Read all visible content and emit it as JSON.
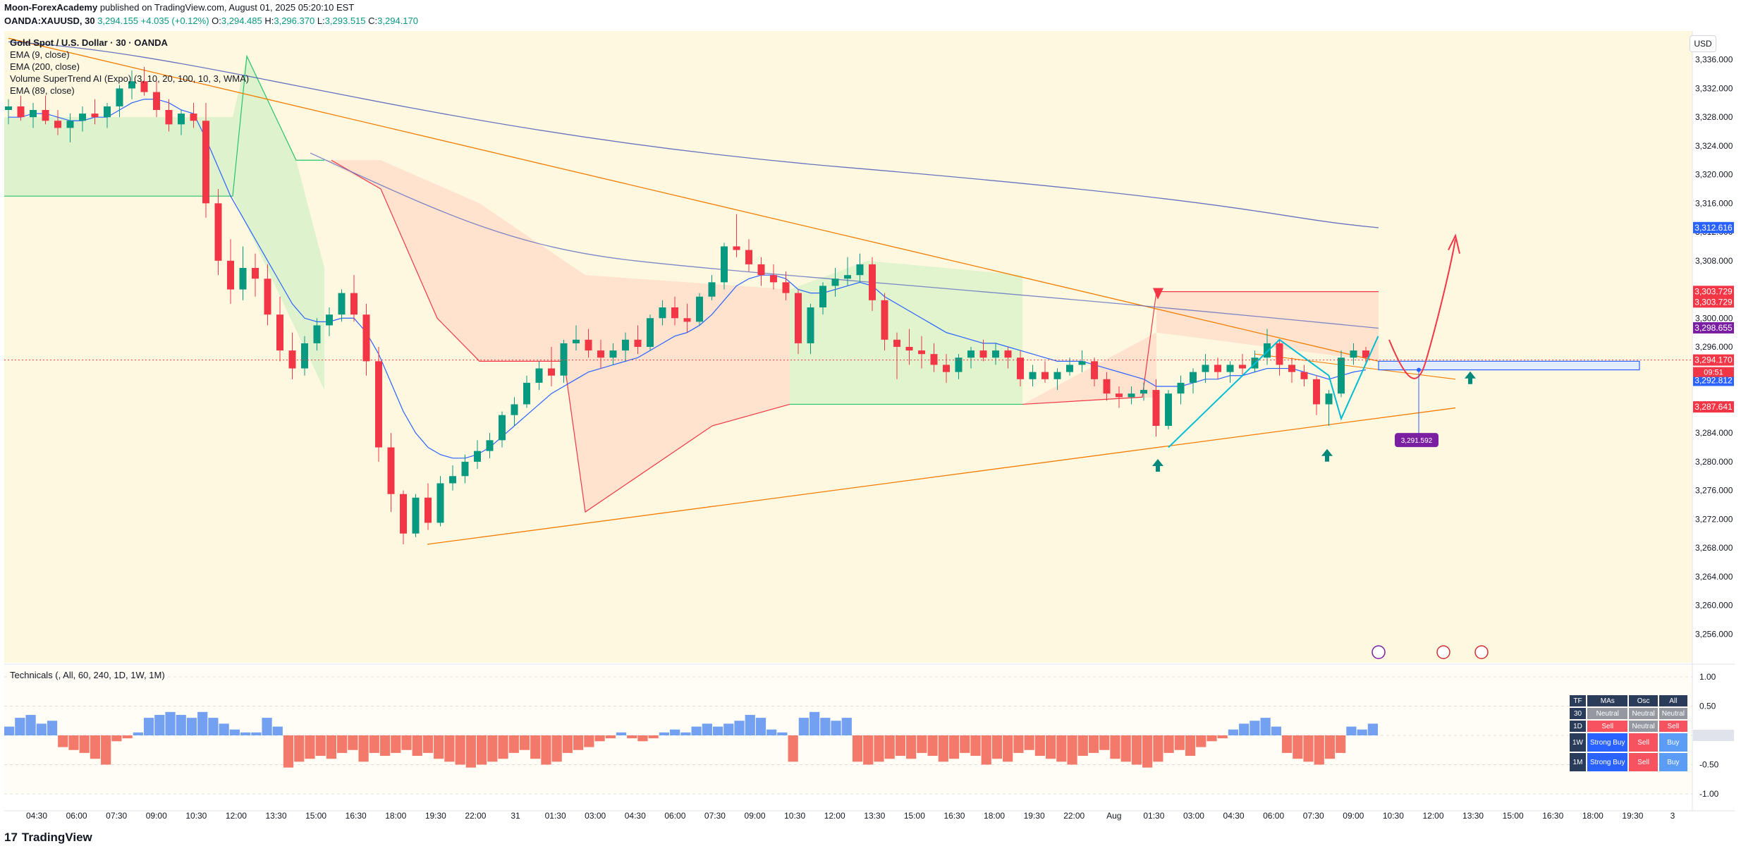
{
  "header": {
    "publisher": "Moon-ForexAcademy",
    "published_text": "published on TradingView.com, August 01, 2025 05:20:10 EST",
    "symbol": "OANDA:XAUUSD, 30",
    "last": "3,294.155",
    "change": "+4.035 (+0.12%)",
    "o_label": "O:",
    "o": "3,294.485",
    "h_label": "H:",
    "h": "3,296.370",
    "l_label": "L:",
    "l": "3,293.515",
    "c_label": "C:",
    "c": "3,294.170"
  },
  "legend": {
    "title": "Gold Spot / U.S. Dollar · 30 · OANDA",
    "items": [
      "EMA (9, close)",
      "EMA (200, close)",
      "Volume SuperTrend AI (Expo) (3, 10, 20, 100, 10, 3, WMA)",
      "EMA (89, close)"
    ]
  },
  "currency_label": "USD",
  "technicals_label": "Technicals (, All, 60, 240, 1D, 1W, 1M)",
  "tech_table": {
    "headers": [
      "TF",
      "MAs",
      "Osc",
      "All"
    ],
    "rows": [
      {
        "tf": "30",
        "mas": "Neutral",
        "osc": "Neutral",
        "all": "Neutral"
      },
      {
        "tf": "1D",
        "mas": "Sell",
        "osc": "Neutral",
        "all": "Sell"
      },
      {
        "tf": "1W",
        "mas": "Strong Buy",
        "osc": "Sell",
        "all": "Buy"
      },
      {
        "tf": "1M",
        "mas": "Strong Buy",
        "osc": "Sell",
        "all": "Buy"
      }
    ]
  },
  "footer": {
    "brand": "TradingView",
    "logo": "17"
  },
  "colors": {
    "up": "#089981",
    "down": "#f23645",
    "ema9": "#2962ff",
    "ema200": "#3f51b5",
    "trend": "#f57c00",
    "bg_zone": "#fff8e1",
    "projection": "#f23645",
    "pattern": "#00bcd4"
  },
  "chart_data": {
    "type": "candlestick",
    "title": "Gold Spot / U.S. Dollar · 30 · OANDA",
    "ylim": [
      3252,
      3340
    ],
    "y_ticks": [
      "3,336.000",
      "3,332.000",
      "3,328.000",
      "3,324.000",
      "3,320.000",
      "3,316.000",
      "3,312.000",
      "3,308.000",
      "3,304.000",
      "3,300.000",
      "3,296.000",
      "3,292.000",
      "3,288.000",
      "3,284.000",
      "3,280.000",
      "3,276.000",
      "3,272.000",
      "3,268.000",
      "3,264.000",
      "3,260.000",
      "3,256.000"
    ],
    "x_ticks": [
      "04:30",
      "06:00",
      "07:30",
      "09:00",
      "10:30",
      "12:00",
      "13:30",
      "15:00",
      "16:30",
      "18:00",
      "19:30",
      "22:00",
      "31",
      "01:30",
      "03:00",
      "04:30",
      "06:00",
      "07:30",
      "09:00",
      "10:30",
      "12:00",
      "13:30",
      "15:00",
      "16:30",
      "18:00",
      "19:30",
      "22:00",
      "Aug",
      "01:30",
      "03:00",
      "04:30",
      "06:00",
      "07:30",
      "09:00",
      "10:30",
      "12:00",
      "13:30",
      "15:00",
      "16:30",
      "18:00",
      "19:30",
      "3"
    ],
    "price_labels": [
      {
        "value": 3312.616,
        "text": "3,312.616",
        "color": "#2962ff"
      },
      {
        "value": 3303.729,
        "text": "3,303.729",
        "color": "#f23645"
      },
      {
        "value": 3303.729,
        "text": "3,303.729",
        "color": "#f23645"
      },
      {
        "value": 3298.655,
        "text": "3,298.655",
        "color": "#7b1fa2"
      },
      {
        "value": 3294.17,
        "text": "3,294.170",
        "color": "#f23645"
      },
      {
        "value": 3292.812,
        "text": "3,292.812",
        "color": "#2962ff"
      },
      {
        "value": 3287.641,
        "text": "3,287.641",
        "color": "#f23645"
      }
    ],
    "countdown": "09:51",
    "target_label": {
      "value": 3291.592,
      "text": "3,291.592"
    },
    "candles": [
      [
        3329.0,
        3330.5,
        3327.0,
        3329.5
      ],
      [
        3329.5,
        3331.0,
        3327.5,
        3328.0
      ],
      [
        3328.0,
        3330.0,
        3326.5,
        3329.0
      ],
      [
        3329.0,
        3331.0,
        3327.0,
        3327.5
      ],
      [
        3327.5,
        3329.0,
        3325.5,
        3326.5
      ],
      [
        3326.5,
        3328.5,
        3324.5,
        3327.5
      ],
      [
        3327.5,
        3329.5,
        3326.0,
        3328.5
      ],
      [
        3328.5,
        3330.5,
        3327.0,
        3328.0
      ],
      [
        3328.0,
        3330.0,
        3326.5,
        3329.5
      ],
      [
        3329.5,
        3332.5,
        3328.0,
        3332.0
      ],
      [
        3332.0,
        3334.5,
        3330.5,
        3333.0
      ],
      [
        3333.0,
        3335.0,
        3331.0,
        3331.5
      ],
      [
        3331.5,
        3333.0,
        3328.0,
        3329.0
      ],
      [
        3329.0,
        3330.5,
        3326.0,
        3327.0
      ],
      [
        3327.0,
        3329.0,
        3325.5,
        3328.5
      ],
      [
        3328.5,
        3330.0,
        3326.5,
        3327.5
      ],
      [
        3327.5,
        3330.0,
        3314.0,
        3316.0
      ],
      [
        3316.0,
        3318.0,
        3306.0,
        3308.0
      ],
      [
        3308.0,
        3311.0,
        3302.0,
        3304.0
      ],
      [
        3304.0,
        3310.0,
        3302.5,
        3307.0
      ],
      [
        3307.0,
        3309.0,
        3303.0,
        3305.5
      ],
      [
        3305.5,
        3307.5,
        3299.0,
        3300.5
      ],
      [
        3300.5,
        3303.0,
        3294.0,
        3295.5
      ],
      [
        3295.5,
        3298.0,
        3291.5,
        3293.0
      ],
      [
        3293.0,
        3297.5,
        3292.0,
        3296.5
      ],
      [
        3296.5,
        3300.0,
        3295.5,
        3299.0
      ],
      [
        3299.0,
        3301.5,
        3297.5,
        3300.5
      ],
      [
        3300.5,
        3304.0,
        3299.5,
        3303.5
      ],
      [
        3303.5,
        3306.0,
        3299.5,
        3300.5
      ],
      [
        3300.5,
        3302.0,
        3292.0,
        3294.0
      ],
      [
        3294.0,
        3296.0,
        3280.0,
        3282.0
      ],
      [
        3282.0,
        3284.0,
        3273.0,
        3275.5
      ],
      [
        3275.5,
        3276.0,
        3268.5,
        3270.0
      ],
      [
        3270.0,
        3275.5,
        3269.5,
        3275.0
      ],
      [
        3275.0,
        3277.0,
        3270.5,
        3271.5
      ],
      [
        3271.5,
        3278.0,
        3271.0,
        3277.0
      ],
      [
        3277.0,
        3279.5,
        3276.0,
        3278.0
      ],
      [
        3278.0,
        3281.0,
        3277.0,
        3280.0
      ],
      [
        3280.0,
        3283.0,
        3279.0,
        3281.5
      ],
      [
        3281.5,
        3284.0,
        3280.5,
        3283.0
      ],
      [
        3283.0,
        3287.0,
        3282.0,
        3286.5
      ],
      [
        3286.5,
        3289.0,
        3285.0,
        3288.0
      ],
      [
        3288.0,
        3292.0,
        3287.5,
        3291.0
      ],
      [
        3291.0,
        3294.0,
        3290.0,
        3293.0
      ],
      [
        3293.0,
        3296.0,
        3290.5,
        3292.0
      ],
      [
        3292.0,
        3297.0,
        3291.0,
        3296.5
      ],
      [
        3296.5,
        3299.0,
        3295.5,
        3297.0
      ],
      [
        3297.0,
        3298.5,
        3294.5,
        3295.5
      ],
      [
        3295.5,
        3297.0,
        3293.0,
        3294.5
      ],
      [
        3294.5,
        3296.5,
        3293.5,
        3295.5
      ],
      [
        3295.5,
        3298.0,
        3294.0,
        3297.0
      ],
      [
        3297.0,
        3299.0,
        3295.0,
        3296.0
      ],
      [
        3296.0,
        3300.5,
        3295.5,
        3300.0
      ],
      [
        3300.0,
        3302.5,
        3299.0,
        3301.5
      ],
      [
        3301.5,
        3303.0,
        3299.0,
        3300.0
      ],
      [
        3300.0,
        3302.0,
        3298.0,
        3299.5
      ],
      [
        3299.5,
        3303.5,
        3299.0,
        3303.0
      ],
      [
        3303.0,
        3306.0,
        3302.5,
        3305.0
      ],
      [
        3305.0,
        3310.5,
        3304.0,
        3310.0
      ],
      [
        3310.0,
        3314.5,
        3308.5,
        3309.5
      ],
      [
        3309.5,
        3311.0,
        3306.5,
        3307.5
      ],
      [
        3307.5,
        3308.5,
        3304.5,
        3306.0
      ],
      [
        3306.0,
        3307.5,
        3304.0,
        3305.0
      ],
      [
        3305.0,
        3306.5,
        3302.5,
        3303.5
      ],
      [
        3303.5,
        3304.0,
        3295.0,
        3296.5
      ],
      [
        3296.5,
        3302.0,
        3295.0,
        3301.5
      ],
      [
        3301.5,
        3305.0,
        3300.5,
        3304.5
      ],
      [
        3304.5,
        3307.0,
        3303.0,
        3305.5
      ],
      [
        3305.5,
        3308.5,
        3304.5,
        3306.0
      ],
      [
        3306.0,
        3309.0,
        3305.0,
        3307.5
      ],
      [
        3307.5,
        3308.5,
        3301.0,
        3302.5
      ],
      [
        3302.5,
        3303.5,
        3295.5,
        3297.0
      ],
      [
        3297.0,
        3298.0,
        3291.5,
        3296.0
      ],
      [
        3296.0,
        3298.5,
        3293.5,
        3295.5
      ],
      [
        3295.5,
        3297.5,
        3293.0,
        3295.0
      ],
      [
        3295.0,
        3296.5,
        3292.5,
        3293.5
      ],
      [
        3293.5,
        3295.0,
        3291.0,
        3292.5
      ],
      [
        3292.5,
        3295.0,
        3291.5,
        3294.5
      ],
      [
        3294.5,
        3296.0,
        3293.0,
        3295.5
      ],
      [
        3295.5,
        3297.0,
        3294.0,
        3294.5
      ],
      [
        3294.5,
        3296.5,
        3293.5,
        3295.5
      ],
      [
        3295.5,
        3296.0,
        3293.0,
        3294.5
      ],
      [
        3294.5,
        3295.5,
        3290.5,
        3291.5
      ],
      [
        3291.5,
        3293.5,
        3290.5,
        3292.5
      ],
      [
        3292.5,
        3294.0,
        3291.0,
        3291.5
      ],
      [
        3291.5,
        3293.0,
        3290.0,
        3292.5
      ],
      [
        3292.5,
        3294.5,
        3292.0,
        3293.5
      ],
      [
        3293.5,
        3295.5,
        3292.5,
        3294.0
      ],
      [
        3294.0,
        3294.5,
        3290.5,
        3291.5
      ],
      [
        3291.5,
        3292.5,
        3288.5,
        3289.5
      ],
      [
        3289.5,
        3290.5,
        3287.5,
        3289.0
      ],
      [
        3289.0,
        3290.5,
        3288.0,
        3289.5
      ],
      [
        3289.5,
        3291.0,
        3288.5,
        3290.0
      ],
      [
        3290.0,
        3291.5,
        3283.5,
        3285.0
      ],
      [
        3285.0,
        3290.0,
        3284.5,
        3289.5
      ],
      [
        3289.5,
        3292.0,
        3288.0,
        3291.0
      ],
      [
        3291.0,
        3293.0,
        3289.5,
        3292.5
      ],
      [
        3292.5,
        3295.0,
        3291.0,
        3293.5
      ],
      [
        3293.5,
        3294.5,
        3291.5,
        3292.5
      ],
      [
        3292.5,
        3294.0,
        3291.0,
        3293.5
      ],
      [
        3293.5,
        3295.0,
        3292.0,
        3293.0
      ],
      [
        3293.0,
        3295.5,
        3292.5,
        3294.5
      ],
      [
        3294.5,
        3298.5,
        3293.5,
        3296.5
      ],
      [
        3296.5,
        3297.0,
        3292.0,
        3293.5
      ],
      [
        3293.5,
        3294.5,
        3291.0,
        3292.5
      ],
      [
        3292.5,
        3293.5,
        3290.5,
        3291.5
      ],
      [
        3291.5,
        3292.0,
        3286.5,
        3288.0
      ],
      [
        3288.0,
        3290.0,
        3285.0,
        3289.5
      ],
      [
        3289.5,
        3295.5,
        3289.0,
        3294.5
      ],
      [
        3294.5,
        3296.5,
        3293.5,
        3295.5
      ],
      [
        3295.5,
        3296.0,
        3293.5,
        3294.5
      ]
    ],
    "ema9": [
      3328,
      3328,
      3328.5,
      3328.5,
      3328,
      3327.5,
      3327.5,
      3328,
      3328,
      3329,
      3330,
      3330.5,
      3330.5,
      3330,
      3329,
      3328.5,
      3325,
      3321,
      3317,
      3314,
      3311,
      3308,
      3305,
      3302,
      3300,
      3299.5,
      3299.5,
      3300,
      3300,
      3298,
      3295,
      3291,
      3287,
      3284,
      3282,
      3281,
      3280.5,
      3280.5,
      3281,
      3282,
      3283.5,
      3285,
      3286.5,
      3288,
      3289.5,
      3290.5,
      3291.5,
      3292.5,
      3293,
      3293.5,
      3294,
      3294.5,
      3295.5,
      3296.5,
      3297.5,
      3298,
      3299,
      3300.5,
      3302.5,
      3304.5,
      3305.5,
      3306,
      3306,
      3305.5,
      3304,
      3303.5,
      3303.5,
      3304,
      3304.5,
      3305,
      3304.5,
      3303,
      3302,
      3301,
      3300,
      3299,
      3298,
      3297.5,
      3297,
      3296.5,
      3296.5,
      3296,
      3295.5,
      3295,
      3294.5,
      3294,
      3294,
      3294,
      3293.5,
      3293,
      3292.5,
      3292,
      3291.5,
      3290.5,
      3290.5,
      3290.5,
      3291,
      3291.5,
      3291.5,
      3292,
      3292,
      3292.5,
      3293,
      3293,
      3293,
      3292.5,
      3292,
      3291.5,
      3292,
      3292.5,
      3292.8
    ]
  },
  "indicator": {
    "y_ticks": [
      "1.00",
      "0.50",
      "0.00",
      "-0.50",
      "-1.00"
    ],
    "values": [
      0.15,
      0.3,
      0.35,
      0.2,
      0.25,
      -0.2,
      -0.25,
      -0.3,
      -0.4,
      -0.5,
      -0.1,
      -0.05,
      0.05,
      0.3,
      0.35,
      0.4,
      0.35,
      0.3,
      0.4,
      0.3,
      0.2,
      0.1,
      0.05,
      0.05,
      0.3,
      0.15,
      -0.55,
      -0.45,
      -0.4,
      -0.35,
      -0.4,
      -0.3,
      -0.25,
      -0.45,
      -0.3,
      -0.35,
      -0.3,
      -0.25,
      -0.35,
      -0.3,
      -0.4,
      -0.45,
      -0.5,
      -0.55,
      -0.5,
      -0.45,
      -0.4,
      -0.3,
      -0.25,
      -0.4,
      -0.5,
      -0.45,
      -0.3,
      -0.25,
      -0.2,
      -0.1,
      -0.05,
      0.05,
      -0.05,
      -0.1,
      -0.05,
      0.05,
      0.1,
      0.05,
      0.15,
      0.2,
      0.15,
      0.2,
      0.25,
      0.35,
      0.3,
      0.1,
      0.05,
      -0.45,
      0.3,
      0.4,
      0.3,
      0.25,
      0.3,
      -0.45,
      -0.5,
      -0.45,
      -0.4,
      -0.35,
      -0.4,
      -0.3,
      -0.35,
      -0.45,
      -0.4,
      -0.3,
      -0.35,
      -0.5,
      -0.4,
      -0.45,
      -0.3,
      -0.25,
      -0.35,
      -0.4,
      -0.45,
      -0.5,
      -0.35,
      -0.3,
      -0.25,
      -0.4,
      -0.45,
      -0.5,
      -0.55,
      -0.45,
      -0.3,
      -0.25,
      -0.35,
      -0.2,
      -0.1,
      -0.05,
      0.1,
      0.2,
      0.25,
      0.3,
      0.15,
      -0.3,
      -0.4,
      -0.45,
      -0.5,
      -0.4,
      -0.3,
      0.15,
      0.1,
      0.2
    ]
  }
}
